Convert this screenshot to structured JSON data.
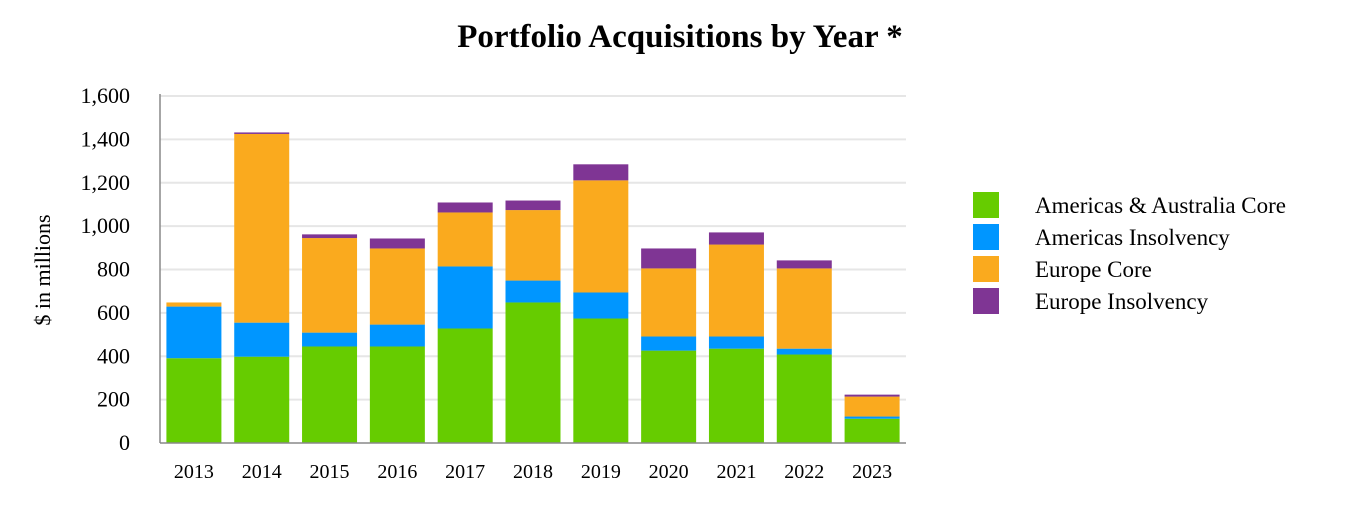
{
  "chart_data": {
    "type": "bar",
    "stacked": true,
    "title": "Portfolio Acquisitions by Year *",
    "xlabel": "",
    "ylabel": "$ in millions",
    "ylim": [
      0,
      1600
    ],
    "yticks": [
      0,
      200,
      400,
      600,
      800,
      1000,
      1200,
      1400,
      1600
    ],
    "ytick_labels": [
      "0",
      "200",
      "400",
      "600",
      "800",
      "1,000",
      "1,200",
      "1,400",
      "1,600"
    ],
    "grid": true,
    "legend_position": "right",
    "categories": [
      "2013",
      "2014",
      "2015",
      "2016",
      "2017",
      "2018",
      "2019",
      "2020",
      "2021",
      "2022",
      "2023"
    ],
    "series": [
      {
        "name": "Americas & Australia Core",
        "color": "#66cc00",
        "values": [
          391,
          398,
          445,
          445,
          528,
          648,
          574,
          426,
          435,
          408,
          112
        ]
      },
      {
        "name": "Americas Insolvency",
        "color": "#0096ff",
        "values": [
          238,
          157,
          64,
          101,
          286,
          101,
          120,
          65,
          56,
          27,
          10
        ]
      },
      {
        "name": "Europe Core",
        "color": "#faaa1e",
        "values": [
          19,
          870,
          436,
          351,
          249,
          325,
          517,
          314,
          424,
          370,
          92
        ]
      },
      {
        "name": "Europe Insolvency",
        "color": "#7f3594",
        "values": [
          0,
          7,
          17,
          46,
          46,
          44,
          74,
          92,
          56,
          37,
          9
        ]
      }
    ]
  }
}
